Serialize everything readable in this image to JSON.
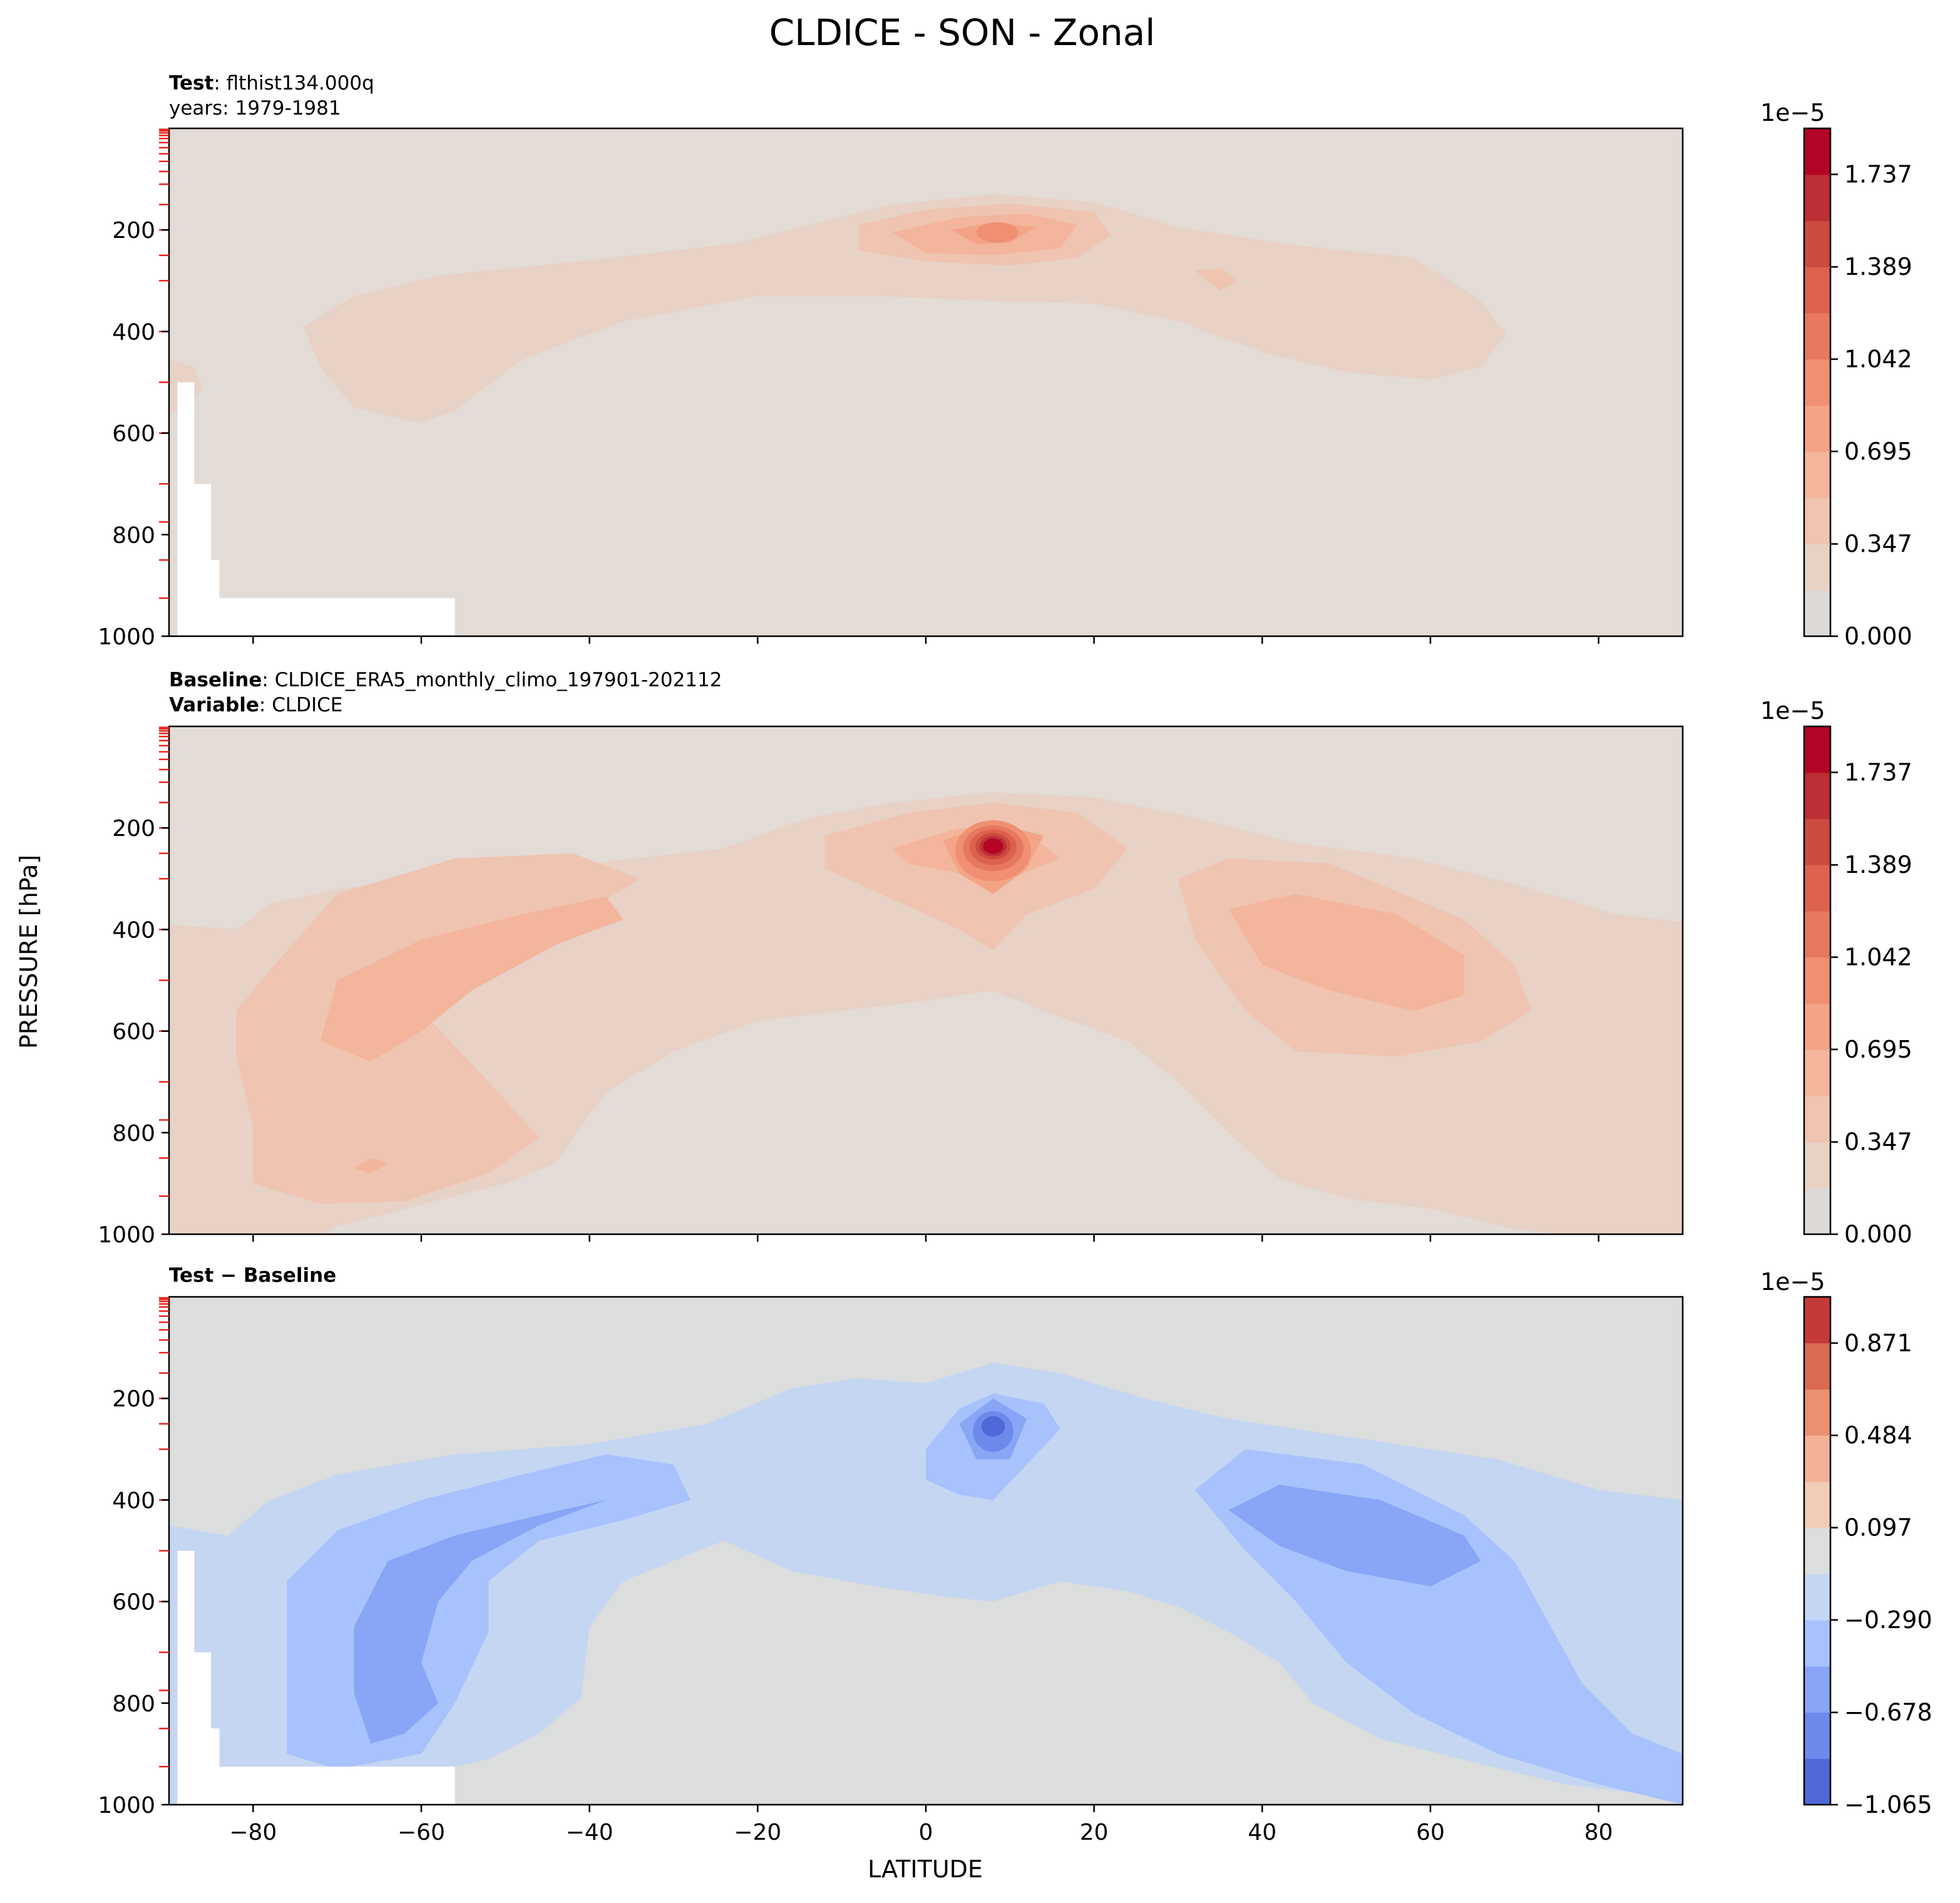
{
  "figure": {
    "title": "CLDICE - SON - Zonal",
    "ylabel": "PRESSURE [hPa]",
    "xlabel": "LATITUDE"
  },
  "panel1": {
    "line1_bold": "Test",
    "line1_sep": ": ",
    "line1_text": "flthist134.000q",
    "line2_text": "years: 1979-1981",
    "cb_multiplier": "1e−5"
  },
  "panel2": {
    "line1_bold": "Baseline",
    "line1_sep": ": ",
    "line1_text": "CLDICE_ERA5_monthly_climo_197901-202112",
    "line2_bold": "Variable",
    "line2_sep": ": ",
    "line2_text": "CLDICE",
    "cb_multiplier": "1e−5"
  },
  "panel3": {
    "line1_bold": "Test − Baseline",
    "cb_multiplier": "1e−5"
  },
  "colors": {
    "panel_bg_seq": "#e2dbd6",
    "panel_bg_div": "#dcdddd",
    "missing": "#ffffff",
    "marker": "#e8231c"
  },
  "chart_data": [
    {
      "type": "contourf",
      "panel": "test",
      "variable": "CLDICE",
      "x": {
        "label": "LATITUDE",
        "range": [
          -90,
          90
        ],
        "ticks": [
          -80,
          -60,
          -40,
          -20,
          0,
          20,
          40,
          60,
          80
        ]
      },
      "y": {
        "label": "PRESSURE [hPa]",
        "range": [
          1000,
          0
        ],
        "inverted": true,
        "ticks": [
          200,
          400,
          600,
          800,
          1000
        ]
      },
      "levels": [
        0.0,
        0.174,
        0.347,
        0.521,
        0.695,
        0.868,
        1.042,
        1.216,
        1.389,
        1.563,
        1.737,
        1.91
      ],
      "colorbar_ticks": [
        "0.000",
        "0.347",
        "0.695",
        "1.042",
        "1.389",
        "1.737"
      ],
      "colorbar_scale": "1e-5",
      "colormap": "coolwarm (upper half)",
      "features": [
        {
          "description": "upper tropospheric ice band",
          "lat_range": [
            -74,
            68
          ],
          "pressure_range": [
            130,
            580
          ],
          "value_max": 0.35
        },
        {
          "description": "tropical maximum",
          "lat": 8,
          "pressure": 225,
          "value_max": 1.1
        }
      ]
    },
    {
      "type": "contourf",
      "panel": "baseline",
      "variable": "CLDICE",
      "x": {
        "label": "LATITUDE",
        "range": [
          -90,
          90
        ],
        "ticks": [
          -80,
          -60,
          -40,
          -20,
          0,
          20,
          40,
          60,
          80
        ]
      },
      "y": {
        "label": "PRESSURE [hPa]",
        "range": [
          1000,
          0
        ],
        "inverted": true,
        "ticks": [
          200,
          400,
          600,
          800,
          1000
        ]
      },
      "levels": [
        0.0,
        0.174,
        0.347,
        0.521,
        0.695,
        0.868,
        1.042,
        1.216,
        1.389,
        1.563,
        1.737,
        1.91
      ],
      "colorbar_ticks": [
        "0.000",
        "0.347",
        "0.695",
        "1.042",
        "1.389",
        "1.737"
      ],
      "colorbar_scale": "1e-5",
      "colormap": "coolwarm (upper half)",
      "features": [
        {
          "description": "tropical upper-level maximum",
          "lat": 8,
          "pressure": 235,
          "value_max": 1.9
        },
        {
          "description": "southern mid-latitude maximum",
          "lat_range": [
            -68,
            -36
          ],
          "pressure_range": [
            370,
            900
          ],
          "value_max": 0.7
        },
        {
          "description": "northern mid-latitude maximum",
          "lat_range": [
            30,
            66
          ],
          "pressure_range": [
            290,
            640
          ],
          "value_max": 0.7
        }
      ]
    },
    {
      "type": "contourf",
      "panel": "difference",
      "variable": "CLDICE",
      "x": {
        "label": "LATITUDE",
        "range": [
          -90,
          90
        ],
        "ticks": [
          -80,
          -60,
          -40,
          -20,
          0,
          20,
          40,
          60,
          80
        ]
      },
      "y": {
        "label": "PRESSURE [hPa]",
        "range": [
          1000,
          0
        ],
        "inverted": true,
        "ticks": [
          200,
          400,
          600,
          800,
          1000
        ]
      },
      "levels": [
        -1.065,
        -0.871,
        -0.678,
        -0.484,
        -0.29,
        -0.097,
        0.097,
        0.29,
        0.484,
        0.678,
        0.871,
        1.065
      ],
      "colorbar_ticks": [
        "−1.065",
        "−0.678",
        "−0.290",
        "0.097",
        "0.484",
        "0.871"
      ],
      "colorbar_scale": "1e-5",
      "colormap": "coolwarm",
      "features": [
        {
          "description": "tropical negative minimum",
          "lat": 8,
          "pressure": 260,
          "value_min": -1.0
        },
        {
          "description": "southern mid-latitude negative",
          "lat_range": [
            -68,
            -34
          ],
          "pressure_range": [
            380,
            920
          ],
          "value_min": -0.7
        },
        {
          "description": "northern mid-latitude negative",
          "lat_range": [
            36,
            66
          ],
          "pressure_range": [
            340,
            590
          ],
          "value_min": -0.7
        }
      ]
    }
  ]
}
